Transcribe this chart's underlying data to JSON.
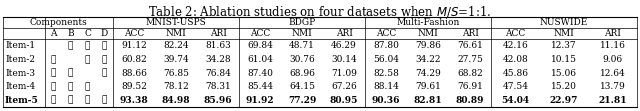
{
  "title": "Table 2: Ablation studies on four datasets when $M/S$=1:1.",
  "group_labels": [
    "Components",
    "MNIST-USPS",
    "BDGP",
    "Multi-Fashion",
    "NUSWIDE"
  ],
  "sub_labels_components": [
    "A",
    "B",
    "C",
    "D"
  ],
  "sub_labels_metrics": [
    "ACC",
    "NMI",
    "ARI"
  ],
  "row_labels": [
    "Item-1",
    "Item-2",
    "Item-3",
    "Item-4",
    "Item-5"
  ],
  "checks": [
    [
      false,
      true,
      true,
      true
    ],
    [
      true,
      false,
      true,
      true
    ],
    [
      true,
      true,
      false,
      true
    ],
    [
      true,
      true,
      true,
      false
    ],
    [
      true,
      true,
      true,
      true
    ]
  ],
  "data": [
    [
      91.12,
      82.24,
      81.63,
      69.84,
      48.71,
      46.29,
      87.8,
      79.86,
      76.61,
      42.16,
      12.37,
      11.16
    ],
    [
      60.82,
      39.74,
      34.28,
      61.04,
      30.76,
      30.14,
      56.04,
      34.22,
      27.75,
      42.08,
      10.15,
      9.06
    ],
    [
      88.66,
      76.85,
      76.84,
      87.4,
      68.96,
      71.09,
      82.58,
      74.29,
      68.82,
      45.86,
      15.06,
      12.64
    ],
    [
      89.52,
      78.12,
      78.31,
      85.44,
      64.15,
      67.26,
      88.14,
      79.61,
      76.91,
      47.54,
      15.2,
      13.79
    ],
    [
      93.38,
      84.98,
      85.96,
      91.92,
      77.29,
      80.95,
      90.36,
      82.81,
      80.89,
      54.04,
      22.97,
      21.81
    ]
  ],
  "bold_row": 4,
  "bg_color": "white",
  "font_size": 6.5,
  "title_font_size": 8.5
}
